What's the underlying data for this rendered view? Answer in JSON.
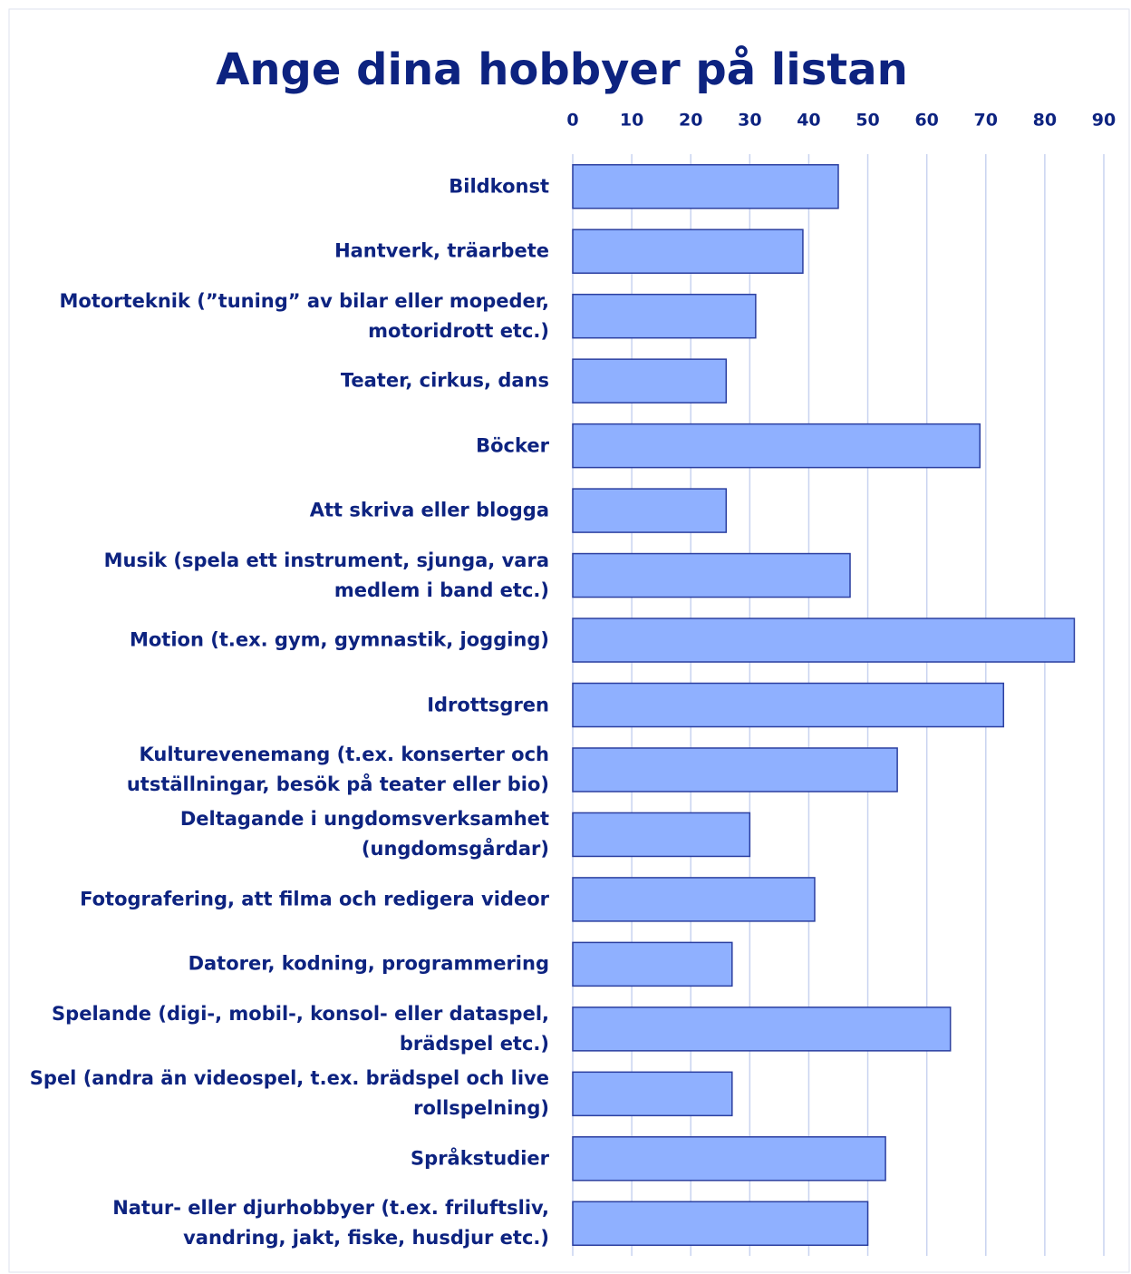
{
  "chart_data": {
    "type": "barh",
    "title": "Ange dina hobbyer på listan",
    "categories": [
      "Bildkonst",
      "Hantverk, träarbete",
      "Motorteknik (”tuning” av bilar eller mopeder,\nmotoridrott etc.)",
      "Teater, cirkus, dans",
      "Böcker",
      "Att skriva eller blogga",
      "Musik (spela ett instrument, sjunga, vara\nmedlem i band etc.)",
      "Motion (t.ex. gym, gymnastik, jogging)",
      "Idrottsgren",
      "Kulturevenemang (t.ex. konserter och\nutställningar, besök på teater eller bio)",
      "Deltagande i ungdomsverksamhet\n(ungdomsgårdar)",
      "Fotografering, att filma och redigera videor",
      "Datorer, kodning, programmering",
      "Spelande (digi-, mobil-, konsol- eller dataspel,\nbrädspel etc.)",
      "Spel (andra än videospel, t.ex. brädspel och live\nrollspelning)",
      "Språkstudier",
      "Natur- eller djurhobbyer (t.ex. friluftsliv,\nvandring, jakt, fiske, husdjur etc.)"
    ],
    "values": [
      45,
      39,
      31,
      26,
      69,
      26,
      47,
      85,
      73,
      55,
      30,
      41,
      27,
      64,
      27,
      53,
      50
    ],
    "color": "#8fb0ff",
    "xlim": [
      0,
      90
    ],
    "xticks": [
      0,
      10,
      20,
      30,
      40,
      50,
      60,
      70,
      80,
      90
    ],
    "grid": true
  }
}
